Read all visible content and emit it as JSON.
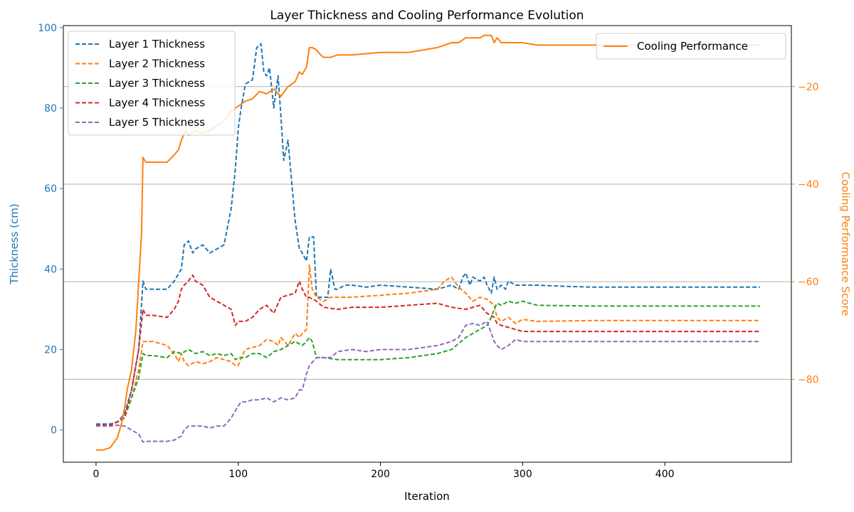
{
  "chart_data": {
    "type": "line",
    "title": "Layer Thickness and Cooling Performance Evolution",
    "xlabel": "Iteration",
    "ylabel_left": "Thickness (cm)",
    "ylabel_right": "Cooling Performance Score",
    "xlim": [
      -23,
      489
    ],
    "ylim_left": [
      -8,
      100.5
    ],
    "ylim_right": [
      -97,
      -7.5
    ],
    "xticks": [
      0,
      100,
      200,
      300,
      400
    ],
    "yticks_left": [
      0,
      20,
      40,
      60,
      80,
      100
    ],
    "yticks_right": [
      -80,
      -60,
      -40,
      -20
    ],
    "grid": "horizontal lines at right-axis ticks",
    "colors": {
      "layer1": "#1f77b4",
      "layer2": "#ff7f0e",
      "layer3": "#2ca02c",
      "layer4": "#d62728",
      "layer5": "#9467bd",
      "cooling": "#ff7f0e",
      "left_axis": "#1f77b4",
      "right_axis": "#ff7f0e",
      "grid": "#b0b0b0"
    },
    "legend_left": {
      "placement": "upper-left",
      "entries": [
        "Layer 1 Thickness",
        "Layer 2 Thickness",
        "Layer 3 Thickness",
        "Layer 4 Thickness",
        "Layer 5 Thickness"
      ]
    },
    "legend_right": {
      "placement": "upper-right",
      "entries": [
        "Cooling Performance"
      ]
    },
    "series": [
      {
        "name": "Layer 1 Thickness",
        "axis": "left",
        "style": "dashed",
        "color_key": "layer1",
        "x": [
          0,
          10,
          15,
          20,
          25,
          30,
          33,
          35,
          40,
          50,
          55,
          60,
          62,
          65,
          68,
          70,
          75,
          80,
          85,
          90,
          95,
          98,
          100,
          102,
          105,
          110,
          113,
          116,
          118,
          120,
          122,
          125,
          128,
          130,
          132,
          135,
          138,
          140,
          143,
          145,
          148,
          150,
          153,
          155,
          160,
          163,
          165,
          168,
          170,
          175,
          180,
          190,
          200,
          220,
          240,
          250,
          255,
          258,
          260,
          263,
          265,
          270,
          273,
          275,
          278,
          280,
          282,
          285,
          288,
          290,
          295,
          300,
          310,
          330,
          350,
          400,
          467
        ],
        "y": [
          1.5,
          1.5,
          2,
          4,
          10,
          20,
          37,
          35,
          35,
          35,
          37,
          40,
          46,
          47,
          44,
          45,
          46,
          44,
          45,
          46,
          55,
          65,
          75,
          80,
          86,
          87,
          95,
          96,
          89,
          88,
          90,
          80,
          88,
          78,
          67,
          72,
          60,
          52,
          45,
          44,
          42,
          48,
          48,
          33,
          33,
          33,
          40,
          35,
          35,
          36,
          36,
          35.5,
          36,
          35.5,
          35,
          36,
          35,
          38,
          39,
          36,
          38,
          37,
          38,
          36,
          34,
          38,
          35,
          36,
          35,
          37,
          36,
          36,
          36,
          35.7,
          35.5,
          35.5,
          35.5
        ]
      },
      {
        "name": "Layer 2 Thickness",
        "axis": "left",
        "style": "dashed",
        "color_key": "layer2",
        "x": [
          0,
          10,
          20,
          25,
          30,
          33,
          35,
          40,
          50,
          55,
          58,
          60,
          62,
          65,
          70,
          75,
          80,
          85,
          90,
          95,
          98,
          100,
          102,
          105,
          110,
          115,
          120,
          125,
          128,
          130,
          135,
          140,
          143,
          145,
          148,
          150,
          152,
          155,
          160,
          165,
          170,
          180,
          200,
          220,
          240,
          245,
          250,
          255,
          260,
          265,
          270,
          275,
          280,
          282,
          285,
          290,
          295,
          300,
          310,
          350,
          400,
          467
        ],
        "y": [
          1.2,
          1.2,
          3,
          8,
          15,
          22,
          22,
          22,
          21,
          19,
          17,
          19,
          17,
          16,
          17,
          16.5,
          17,
          18,
          17.5,
          17,
          16,
          16,
          18,
          20,
          20.5,
          21,
          22.5,
          22,
          21,
          23,
          21,
          24,
          23,
          24,
          25,
          41,
          35,
          33,
          32,
          33,
          33,
          33,
          33.5,
          34,
          35,
          37,
          38,
          35.5,
          34,
          32,
          33,
          32.5,
          31,
          28,
          27,
          28,
          26.5,
          27.5,
          27,
          27.2,
          27.2,
          27.2
        ]
      },
      {
        "name": "Layer 3 Thickness",
        "axis": "left",
        "style": "dashed",
        "color_key": "layer3",
        "x": [
          0,
          10,
          15,
          20,
          25,
          30,
          33,
          35,
          40,
          50,
          55,
          60,
          65,
          70,
          75,
          80,
          85,
          90,
          95,
          98,
          100,
          105,
          110,
          115,
          120,
          125,
          130,
          135,
          140,
          145,
          148,
          150,
          152,
          155,
          160,
          170,
          180,
          200,
          220,
          240,
          250,
          260,
          265,
          270,
          275,
          278,
          280,
          282,
          285,
          290,
          295,
          300,
          310,
          350,
          400,
          467
        ],
        "y": [
          1.3,
          1.3,
          2,
          3,
          8,
          13,
          19,
          18.5,
          18.5,
          18,
          19.5,
          19,
          20,
          19,
          19.5,
          18.5,
          19,
          18.5,
          19,
          17.5,
          18,
          18,
          19,
          19,
          18,
          19.5,
          20,
          21,
          22,
          21,
          22,
          23,
          22,
          18,
          18,
          17.5,
          17.5,
          17.5,
          18,
          19,
          20,
          23,
          24,
          25,
          26,
          28,
          30,
          31.5,
          31,
          32,
          31.5,
          32,
          31,
          30.8,
          30.8,
          30.8
        ]
      },
      {
        "name": "Layer 4 Thickness",
        "axis": "left",
        "style": "dashed",
        "color_key": "layer4",
        "x": [
          0,
          10,
          15,
          20,
          25,
          30,
          33,
          35,
          40,
          50,
          55,
          58,
          60,
          62,
          65,
          68,
          70,
          75,
          80,
          85,
          90,
          95,
          98,
          100,
          105,
          110,
          115,
          120,
          125,
          130,
          135,
          140,
          143,
          145,
          148,
          150,
          155,
          160,
          170,
          180,
          200,
          220,
          240,
          250,
          260,
          270,
          275,
          280,
          282,
          285,
          290,
          295,
          300,
          310,
          350,
          400,
          467
        ],
        "y": [
          1.2,
          1.2,
          2,
          3,
          10,
          20,
          30,
          28.5,
          28.5,
          28,
          30,
          32,
          35,
          36,
          37,
          38.5,
          37,
          36,
          33,
          32,
          31,
          30,
          26,
          27,
          27,
          28,
          30,
          31,
          29,
          33,
          33.5,
          34,
          37,
          35,
          33,
          33,
          32,
          30.5,
          30,
          30.5,
          30.5,
          31,
          31.5,
          30.5,
          30,
          31,
          29,
          28,
          26.5,
          26,
          25.5,
          25,
          24.5,
          24.5,
          24.5,
          24.5,
          24.5
        ]
      },
      {
        "name": "Layer 5 Thickness",
        "axis": "left",
        "style": "dashed",
        "color_key": "layer5",
        "x": [
          0,
          10,
          15,
          20,
          25,
          30,
          33,
          35,
          40,
          50,
          55,
          60,
          62,
          65,
          70,
          75,
          80,
          85,
          90,
          95,
          100,
          102,
          105,
          110,
          115,
          120,
          125,
          130,
          135,
          140,
          143,
          145,
          148,
          150,
          155,
          160,
          165,
          170,
          180,
          190,
          200,
          220,
          230,
          240,
          250,
          255,
          260,
          265,
          270,
          275,
          278,
          280,
          282,
          285,
          290,
          295,
          300,
          310,
          350,
          400,
          467
        ],
        "y": [
          1,
          1,
          1.2,
          1,
          0,
          -1,
          -3,
          -2.8,
          -2.8,
          -2.8,
          -2.5,
          -1.5,
          0,
          1,
          1,
          1,
          0.5,
          1,
          1,
          3,
          6,
          7,
          7,
          7.5,
          7.5,
          8,
          7,
          8,
          7.5,
          8,
          10,
          10,
          14,
          16,
          18,
          18,
          18,
          19.5,
          20,
          19.5,
          20,
          20,
          20.5,
          21,
          22,
          23,
          26,
          26.5,
          26,
          27,
          24,
          22,
          21,
          20,
          21,
          22.5,
          22,
          22,
          22,
          22,
          22
        ]
      },
      {
        "name": "Cooling Performance",
        "axis": "right",
        "style": "solid",
        "color_key": "cooling",
        "x": [
          0,
          5,
          10,
          15,
          18,
          20,
          22,
          25,
          28,
          30,
          31,
          32,
          33,
          35,
          40,
          45,
          50,
          55,
          58,
          60,
          63,
          65,
          70,
          75,
          80,
          85,
          90,
          95,
          100,
          105,
          110,
          115,
          120,
          125,
          130,
          135,
          140,
          143,
          145,
          148,
          150,
          152,
          155,
          158,
          160,
          165,
          170,
          180,
          200,
          220,
          240,
          250,
          255,
          260,
          265,
          270,
          273,
          275,
          278,
          280,
          282,
          285,
          290,
          295,
          300,
          310,
          320,
          350,
          400,
          467
        ],
        "y": [
          -94.5,
          -94.5,
          -94,
          -92,
          -89,
          -86,
          -82,
          -78,
          -70,
          -60,
          -55,
          -50,
          -34.5,
          -35.5,
          -35.5,
          -35.5,
          -35.5,
          -34,
          -33,
          -31,
          -29,
          -30,
          -29,
          -29.5,
          -29,
          -28,
          -27,
          -25,
          -24,
          -23,
          -22.5,
          -21,
          -21.5,
          -20.5,
          -22,
          -20,
          -19,
          -17,
          -17.5,
          -16,
          -12,
          -12,
          -12.5,
          -13.5,
          -14,
          -14,
          -13.5,
          -13.5,
          -13,
          -13,
          -12,
          -11,
          -11,
          -10,
          -10,
          -10,
          -9.5,
          -9.5,
          -9.5,
          -11,
          -10,
          -11,
          -11,
          -11,
          -11,
          -11.5,
          -11.5,
          -11.5,
          -11.5,
          -11.5
        ]
      }
    ]
  }
}
